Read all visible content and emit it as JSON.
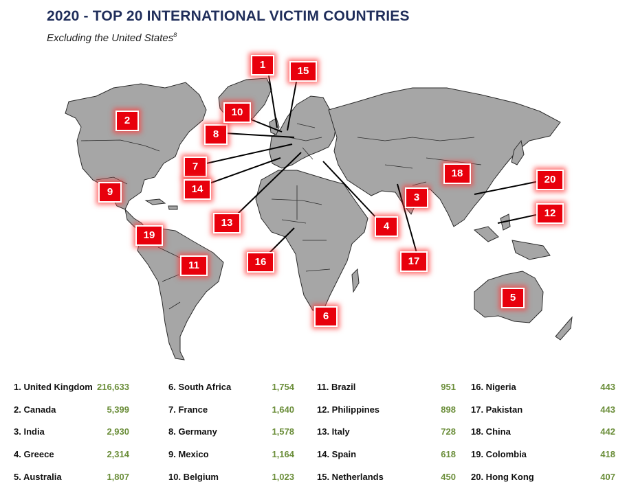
{
  "title": "2020 - TOP 20 INTERNATIONAL VICTIM COUNTRIES",
  "subtitle": "Excluding the United States",
  "subtitle_footnote": "8",
  "colors": {
    "title": "#1f2d5a",
    "marker": "#e8000c",
    "land": "#a6a6a6",
    "value": "#6b8e3a"
  },
  "markers": [
    "1",
    "2",
    "3",
    "4",
    "5",
    "6",
    "7",
    "8",
    "9",
    "10",
    "11",
    "12",
    "13",
    "14",
    "15",
    "16",
    "17",
    "18",
    "19",
    "20"
  ],
  "countries": [
    {
      "label": "1. United Kingdom",
      "value": "216,633"
    },
    {
      "label": "2. Canada",
      "value": "5,399"
    },
    {
      "label": "3. India",
      "value": "2,930"
    },
    {
      "label": "4. Greece",
      "value": "2,314"
    },
    {
      "label": "5. Australia",
      "value": "1,807"
    },
    {
      "label": "6. South Africa",
      "value": "1,754"
    },
    {
      "label": "7. France",
      "value": "1,640"
    },
    {
      "label": "8. Germany",
      "value": "1,578"
    },
    {
      "label": "9. Mexico",
      "value": "1,164"
    },
    {
      "label": "10. Belgium",
      "value": "1,023"
    },
    {
      "label": "11. Brazil",
      "value": "951"
    },
    {
      "label": "12. Philippines",
      "value": "898"
    },
    {
      "label": "13. Italy",
      "value": "728"
    },
    {
      "label": "14. Spain",
      "value": "618"
    },
    {
      "label": "15. Netherlands",
      "value": "450"
    },
    {
      "label": "16. Nigeria",
      "value": "443"
    },
    {
      "label": "17. Pakistan",
      "value": "443"
    },
    {
      "label": "18. China",
      "value": "442"
    },
    {
      "label": "19. Colombia",
      "value": "418"
    },
    {
      "label": "20. Hong Kong",
      "value": "407"
    }
  ]
}
